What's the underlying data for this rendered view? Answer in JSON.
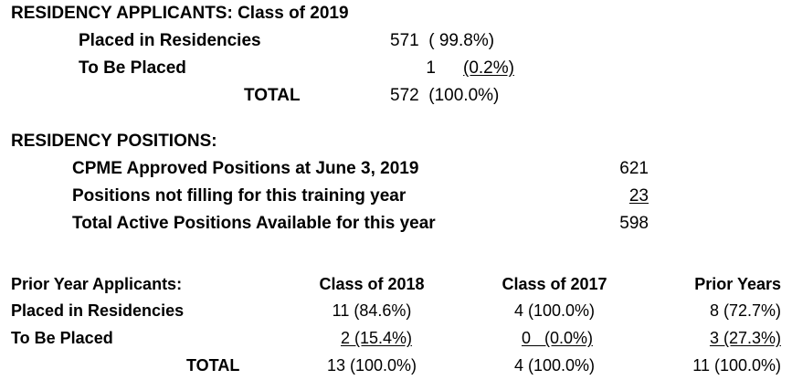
{
  "applicants": {
    "heading": "RESIDENCY APPLICANTS: Class of 2019",
    "placed_label": "Placed in Residencies",
    "placed_value": "571  ( 99.8%)",
    "tobe_label": "To Be Placed",
    "tobe_count": "1",
    "tobe_pct": "(0.2%)",
    "total_label": "TOTAL",
    "total_value": "572  (100.0%)"
  },
  "positions": {
    "heading": "RESIDENCY POSITIONS:",
    "approved_label": "CPME Approved Positions at June 3, 2019",
    "approved_value": "621",
    "notfilling_label": "Positions not filling for this training year",
    "notfilling_value": "23",
    "active_label": "Total Active Positions Available for this year",
    "active_value": "598"
  },
  "prior": {
    "heading": "Prior Year Applicants:",
    "col_2018": "Class of 2018",
    "col_2017": "Class of 2017",
    "col_prior": "Prior Years",
    "placed_label": "Placed in Residencies",
    "tobe_label": "To Be Placed",
    "total_label": "TOTAL",
    "placed_2018": "11 (84.6%)",
    "placed_2017": "4 (100.0%)",
    "placed_prior": "8 (72.7%)",
    "tobe_2018": "2 (15.4%)",
    "tobe_2017": "0   (0.0%)",
    "tobe_prior": "3 (27.3%)",
    "total_2018": "13 (100.0%)",
    "total_2017": "4 (100.0%)",
    "total_prior": "11 (100.0%)"
  }
}
